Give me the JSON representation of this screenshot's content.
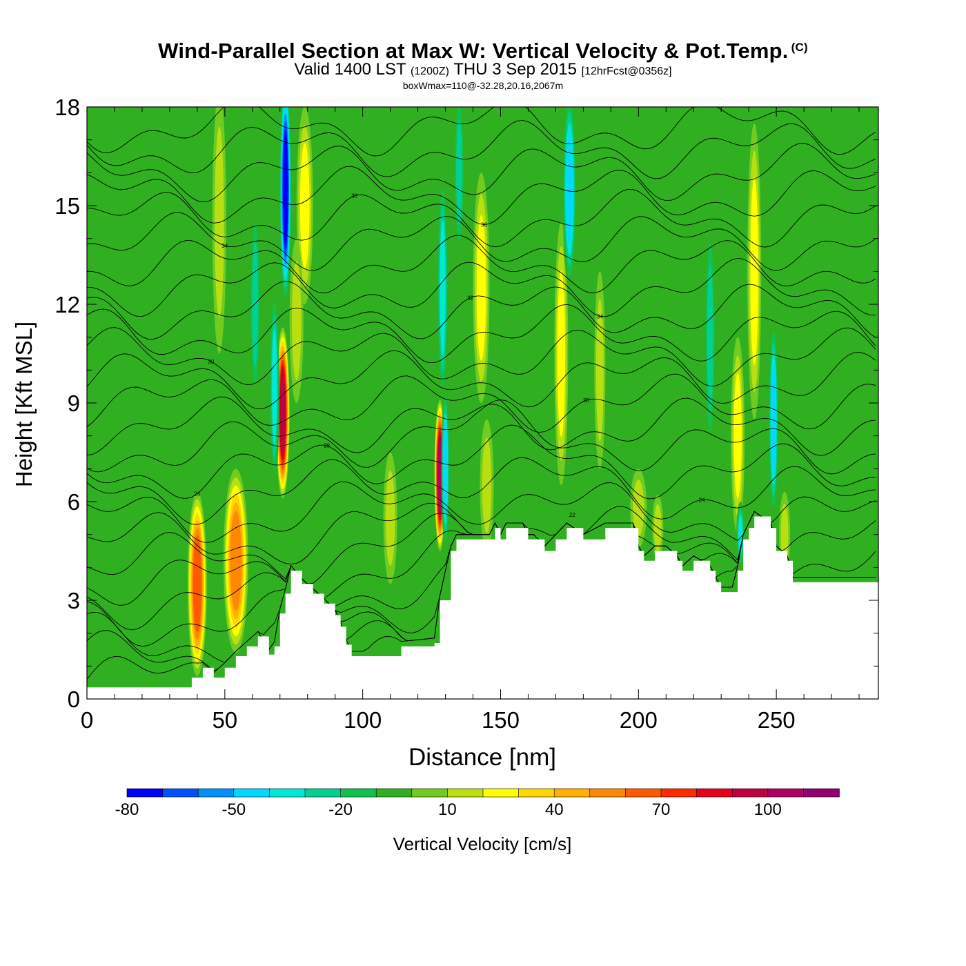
{
  "title": {
    "main": "Wind-Parallel Section at Max W: Vertical Velocity & Pot.Temp.",
    "copyright": "(C)",
    "valid_prefix": "Valid 1400 LST",
    "valid_z": "(1200Z)",
    "valid_date": "THU 3 Sep 2015",
    "fcst": "[12hrFcst@0356z]",
    "box": "boxWmax=110@-32.28,20.16,2067m"
  },
  "chart_data": {
    "type": "heatmap",
    "xlabel": "Distance [nm]",
    "ylabel": "Height [Kft MSL]",
    "xlim": [
      0,
      287
    ],
    "ylim": [
      0,
      18
    ],
    "xticks": [
      0,
      50,
      100,
      150,
      200,
      250
    ],
    "yticks": [
      0,
      3,
      6,
      9,
      12,
      15,
      18
    ],
    "colorbar": {
      "label": "Vertical Velocity [cm/s]",
      "tick_labels": [
        "-80",
        "-50",
        "-20",
        "10",
        "40",
        "70",
        "100"
      ],
      "tick_values": [
        -80,
        -50,
        -20,
        10,
        40,
        70,
        100
      ],
      "bin_lower_edges": [
        -80,
        -70,
        -60,
        -50,
        -40,
        -30,
        -20,
        -10,
        0,
        10,
        20,
        30,
        40,
        50,
        60,
        70,
        80,
        90,
        100,
        110
      ],
      "colors": [
        "#0000ff",
        "#0050ff",
        "#0090ff",
        "#00d8ff",
        "#00e8d8",
        "#00d090",
        "#10c050",
        "#30b020",
        "#70cc20",
        "#b8e010",
        "#ffff00",
        "#ffd800",
        "#ffb000",
        "#ff8800",
        "#ff5a00",
        "#ff2a00",
        "#e8001a",
        "#c00040",
        "#b00060",
        "#900070"
      ]
    },
    "background_color": "#30b020",
    "terrain": [
      [
        0,
        0.35
      ],
      [
        36,
        0.35
      ],
      [
        38,
        0.65
      ],
      [
        42,
        0.95
      ],
      [
        46,
        0.65
      ],
      [
        50,
        0.95
      ],
      [
        54,
        1.3
      ],
      [
        58,
        1.6
      ],
      [
        62,
        1.9
      ],
      [
        66,
        1.35
      ],
      [
        68,
        1.6
      ],
      [
        70,
        2.6
      ],
      [
        72,
        3.2
      ],
      [
        74,
        3.9
      ],
      [
        78,
        3.5
      ],
      [
        82,
        3.2
      ],
      [
        86,
        2.9
      ],
      [
        90,
        2.55
      ],
      [
        92,
        2.2
      ],
      [
        94,
        1.65
      ],
      [
        96,
        1.3
      ],
      [
        110,
        1.3
      ],
      [
        114,
        1.6
      ],
      [
        126,
        1.7
      ],
      [
        128,
        3.0
      ],
      [
        132,
        4.5
      ],
      [
        134,
        4.85
      ],
      [
        146,
        4.85
      ],
      [
        148,
        5.2
      ],
      [
        150,
        4.85
      ],
      [
        152,
        5.2
      ],
      [
        158,
        5.2
      ],
      [
        160,
        4.85
      ],
      [
        162,
        4.85
      ],
      [
        166,
        4.5
      ],
      [
        170,
        4.85
      ],
      [
        174,
        5.2
      ],
      [
        180,
        4.85
      ],
      [
        188,
        5.2
      ],
      [
        198,
        5.2
      ],
      [
        200,
        4.5
      ],
      [
        202,
        4.2
      ],
      [
        206,
        4.5
      ],
      [
        210,
        4.5
      ],
      [
        214,
        4.2
      ],
      [
        216,
        3.9
      ],
      [
        220,
        4.2
      ],
      [
        226,
        3.9
      ],
      [
        228,
        3.55
      ],
      [
        230,
        3.25
      ],
      [
        235,
        3.25
      ],
      [
        236,
        3.9
      ],
      [
        238,
        4.85
      ],
      [
        240,
        5.2
      ],
      [
        242,
        5.55
      ],
      [
        248,
        5.2
      ],
      [
        250,
        4.5
      ],
      [
        254,
        4.2
      ],
      [
        256,
        3.55
      ],
      [
        287,
        3.55
      ]
    ],
    "w_features": [
      {
        "x": 40,
        "y": 3.5,
        "w": 70,
        "rx": 3.5,
        "ry": 2.8
      },
      {
        "x": 54,
        "y": 4.2,
        "w": 55,
        "rx": 4.5,
        "ry": 2.8
      },
      {
        "x": 71,
        "y": 8.7,
        "w": 100,
        "rx": 2.5,
        "ry": 2.6
      },
      {
        "x": 128,
        "y": 6.8,
        "w": 110,
        "rx": 2.0,
        "ry": 2.3
      },
      {
        "x": 79,
        "y": 15.0,
        "w": 22,
        "rx": 3.0,
        "ry": 3.0
      },
      {
        "x": 76,
        "y": 11.5,
        "w": 18,
        "rx": 2.5,
        "ry": 2.5
      },
      {
        "x": 143,
        "y": 12.5,
        "w": 22,
        "rx": 3.0,
        "ry": 3.5
      },
      {
        "x": 172,
        "y": 10.5,
        "w": 26,
        "rx": 2.5,
        "ry": 4.0
      },
      {
        "x": 242,
        "y": 13.0,
        "w": 28,
        "rx": 2.5,
        "ry": 4.5
      },
      {
        "x": 236,
        "y": 8.0,
        "w": 22,
        "rx": 2.5,
        "ry": 3.0
      },
      {
        "x": 48,
        "y": 14.5,
        "w": 18,
        "rx": 2.5,
        "ry": 4.0
      },
      {
        "x": 110,
        "y": 5.5,
        "w": 12,
        "rx": 2.5,
        "ry": 2.0
      },
      {
        "x": 200,
        "y": 5.8,
        "w": 15,
        "rx": 3.0,
        "ry": 1.2
      },
      {
        "x": 207,
        "y": 5.2,
        "w": 20,
        "rx": 2.0,
        "ry": 1.0
      },
      {
        "x": 253,
        "y": 5.0,
        "w": 18,
        "rx": 2.0,
        "ry": 1.3
      },
      {
        "x": 186,
        "y": 10.0,
        "w": 12,
        "rx": 2.0,
        "ry": 3.0
      },
      {
        "x": 145,
        "y": 6.5,
        "w": 14,
        "rx": 2.5,
        "ry": 2.0
      },
      {
        "x": 72,
        "y": 15.5,
        "w": -75,
        "rx": 2.2,
        "ry": 3.5
      },
      {
        "x": 68,
        "y": 9.5,
        "w": -40,
        "rx": 1.8,
        "ry": 3.0
      },
      {
        "x": 130,
        "y": 7.0,
        "w": -45,
        "rx": 1.5,
        "ry": 2.5
      },
      {
        "x": 129,
        "y": 12.5,
        "w": -38,
        "rx": 2.0,
        "ry": 3.5
      },
      {
        "x": 175,
        "y": 15.5,
        "w": -45,
        "rx": 2.5,
        "ry": 3.0
      },
      {
        "x": 226,
        "y": 11.0,
        "w": -22,
        "rx": 2.0,
        "ry": 3.5
      },
      {
        "x": 249,
        "y": 8.5,
        "w": -45,
        "rx": 1.8,
        "ry": 3.0
      },
      {
        "x": 237,
        "y": 5.0,
        "w": -35,
        "rx": 1.5,
        "ry": 1.0
      },
      {
        "x": 61,
        "y": 12.0,
        "w": -28,
        "rx": 2.0,
        "ry": 3.0
      },
      {
        "x": 135,
        "y": 16.0,
        "w": -30,
        "rx": 2.0,
        "ry": 2.5
      }
    ],
    "theta_isentropes": [
      {
        "base": 0.6,
        "label": ""
      },
      {
        "base": 1.2,
        "label": ""
      },
      {
        "base": 1.8,
        "label": ""
      },
      {
        "base": 2.4,
        "label": ""
      },
      {
        "base": 3.0,
        "label": ""
      },
      {
        "base": 3.6,
        "label": ""
      },
      {
        "base": 4.2,
        "label": ""
      },
      {
        "base": 4.8,
        "label": ""
      },
      {
        "base": 5.5,
        "label": "22"
      },
      {
        "base": 6.2,
        "label": "24"
      },
      {
        "base": 6.9,
        "label": "26"
      },
      {
        "base": 7.6,
        "label": "28"
      },
      {
        "base": 8.3,
        "label": ""
      },
      {
        "base": 9.0,
        "label": "28"
      },
      {
        "base": 9.7,
        "label": ""
      },
      {
        "base": 10.4,
        "label": "30"
      },
      {
        "base": 11.1,
        "label": ""
      },
      {
        "base": 11.8,
        "label": "32"
      },
      {
        "base": 12.5,
        "label": "34"
      },
      {
        "base": 13.2,
        "label": ""
      },
      {
        "base": 13.9,
        "label": "34"
      },
      {
        "base": 14.6,
        "label": "36"
      },
      {
        "base": 15.3,
        "label": "36"
      },
      {
        "base": 16.0,
        "label": ""
      },
      {
        "base": 16.7,
        "label": ""
      },
      {
        "base": 17.4,
        "label": ""
      }
    ]
  }
}
